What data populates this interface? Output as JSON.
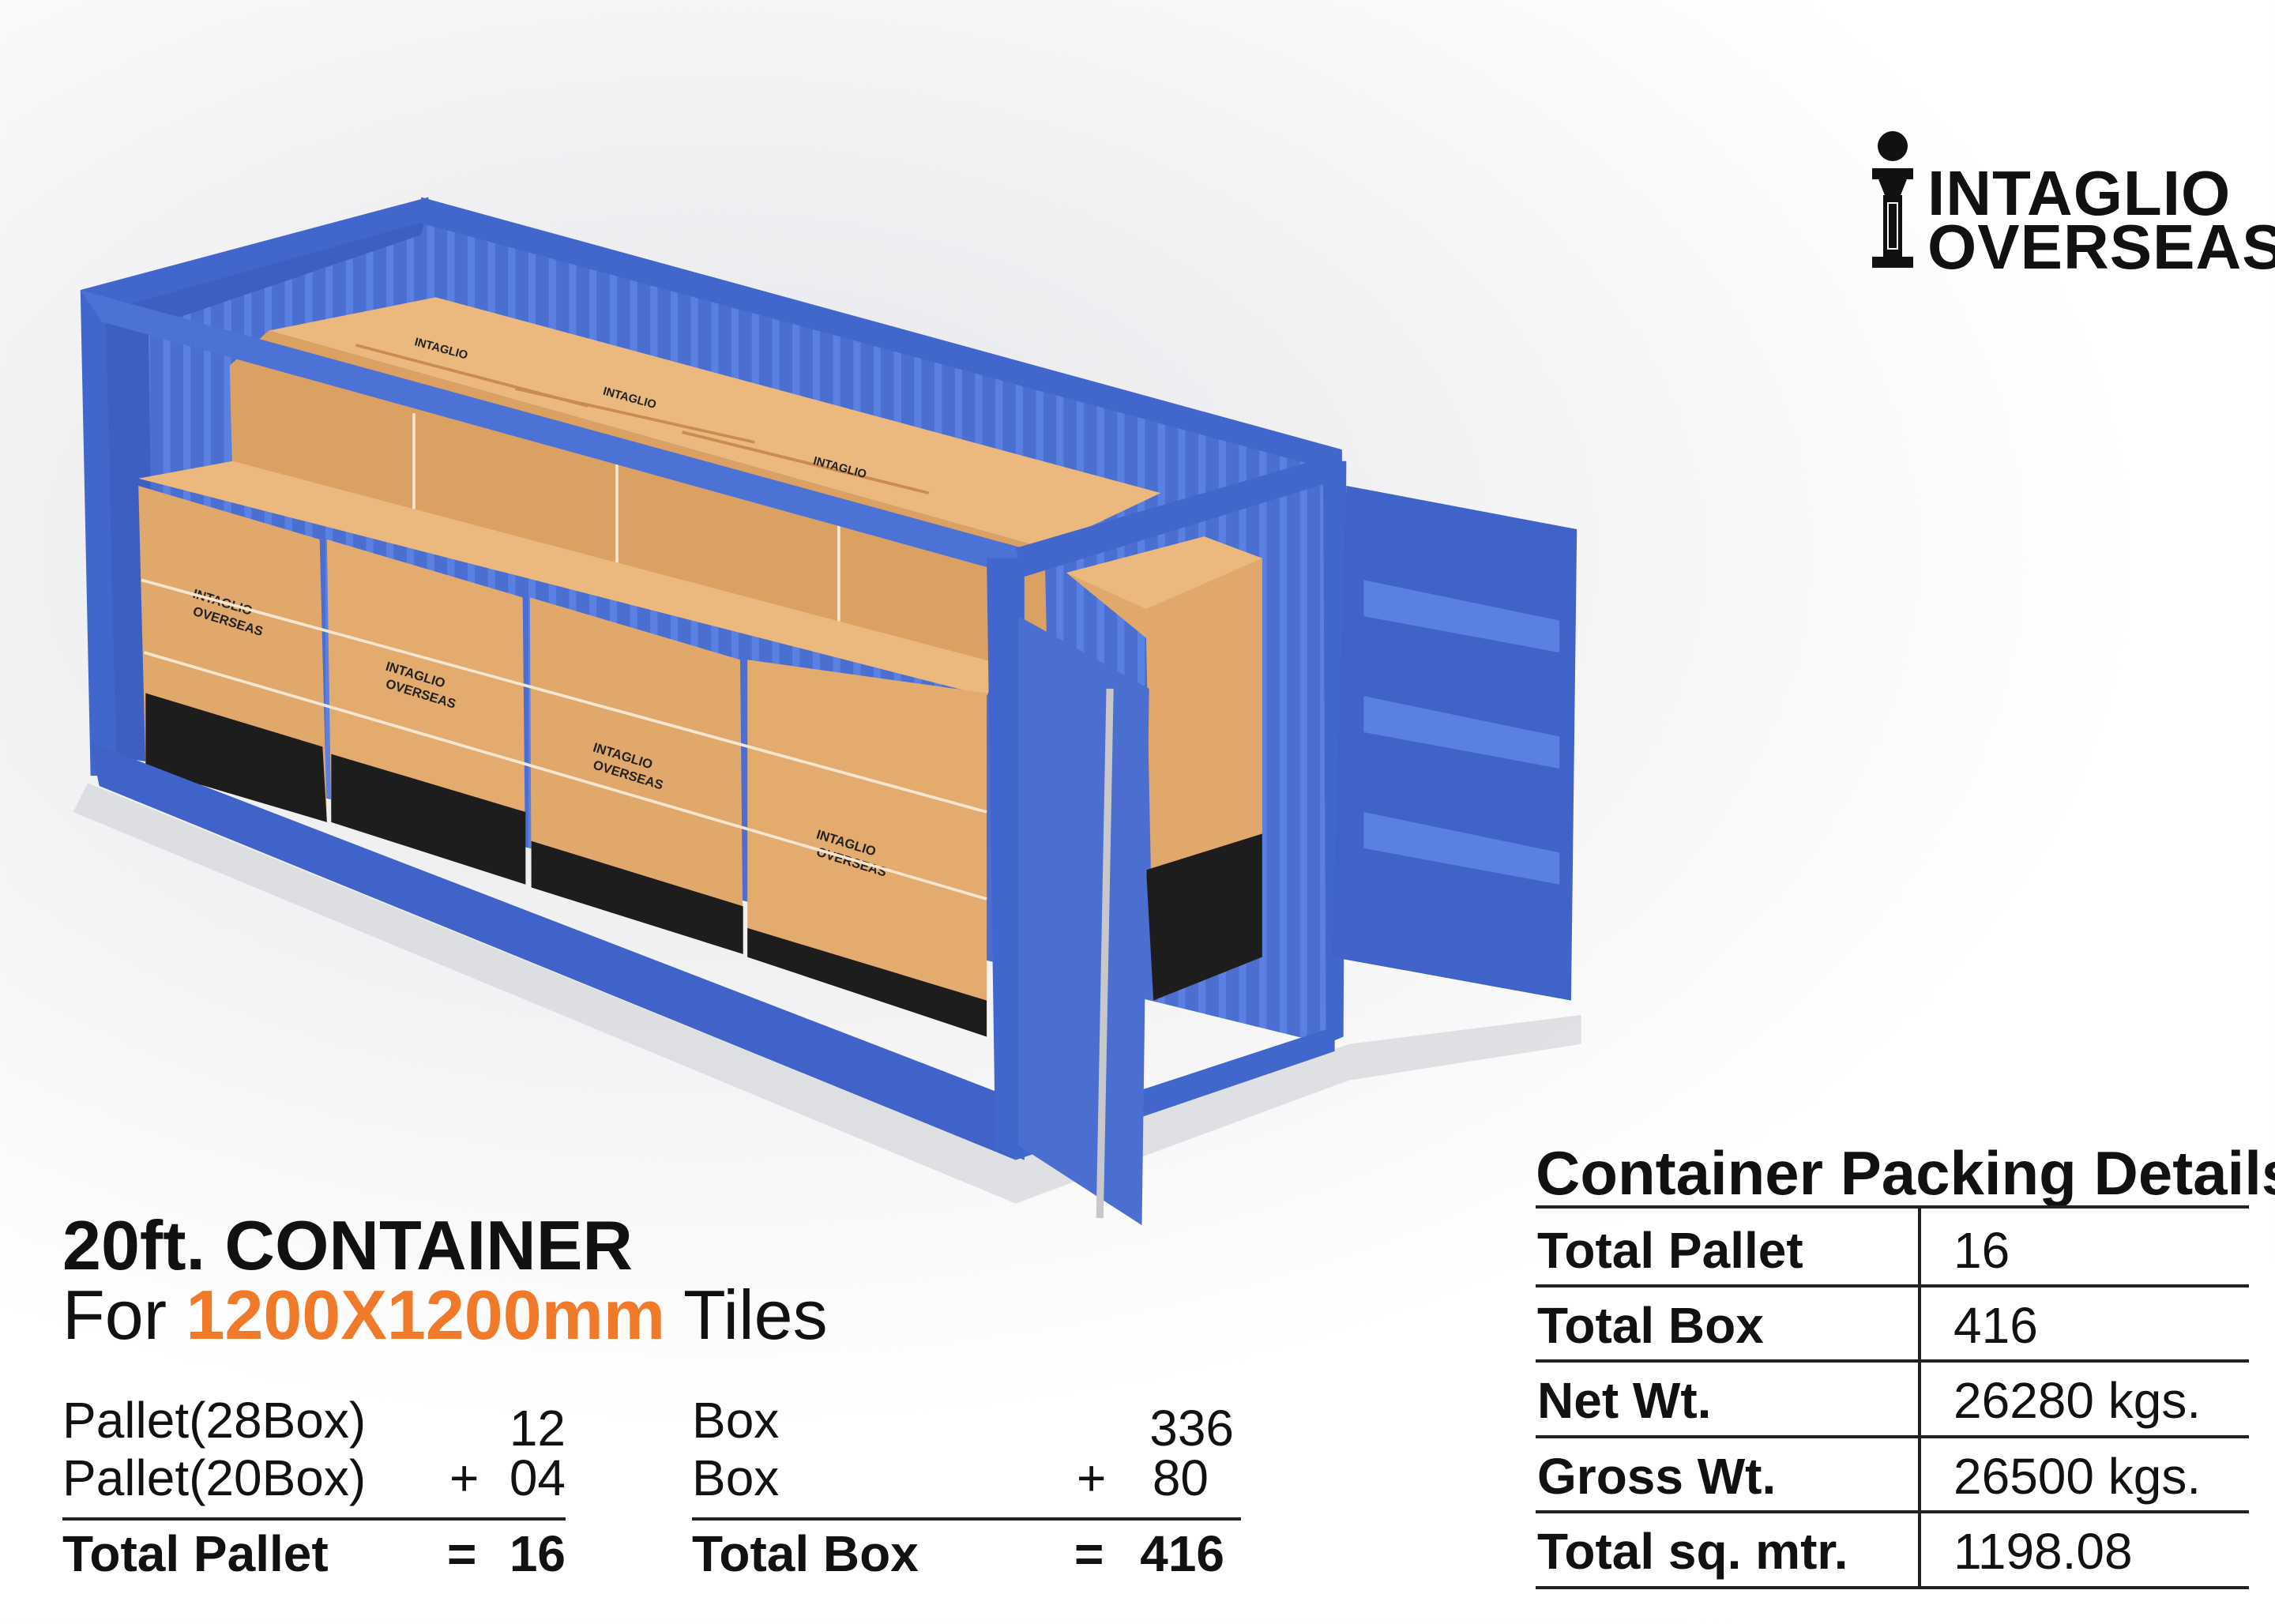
{
  "brand": {
    "logo_line1": "INTAGLIO",
    "logo_line2": "OVERSEAS",
    "icon": "pillar-i-logo-icon"
  },
  "colors": {
    "accent": "#f07a2a",
    "container_blue": "#4a6fd0",
    "carton": "#e0a86a",
    "text": "#111111"
  },
  "heading": {
    "title": "20ft. CONTAINER",
    "subtitle_prefix": "For",
    "subtitle_highlight": "1200X1200mm",
    "subtitle_suffix": "Tiles"
  },
  "pallet_calc": {
    "rows": [
      {
        "label": "Pallet(28Box)",
        "op": "",
        "value": "12"
      },
      {
        "label": "Pallet(20Box)",
        "op": "+",
        "value": "04"
      }
    ],
    "total": {
      "label": "Total Pallet",
      "op": "=",
      "value": "16"
    }
  },
  "box_calc": {
    "rows": [
      {
        "label": "Box",
        "op": "",
        "value": "336"
      },
      {
        "label": "Box",
        "op": "+",
        "value": "80"
      }
    ],
    "total": {
      "label": "Total Box",
      "op": "=",
      "value": "416"
    }
  },
  "packing_table": {
    "title": "Container Packing Details",
    "rows": [
      {
        "label": "Total Pallet",
        "value": "16"
      },
      {
        "label": "Total Box",
        "value": "416"
      },
      {
        "label": "Net Wt.",
        "value": "26280 kgs."
      },
      {
        "label": "Gross Wt.",
        "value": "26500 kgs."
      },
      {
        "label": "Total sq. mtr.",
        "value": "1198.08"
      }
    ]
  }
}
